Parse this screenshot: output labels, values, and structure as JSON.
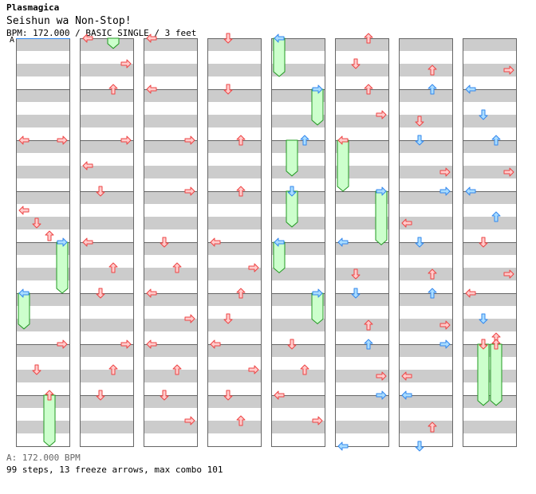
{
  "header": {
    "game": "Plasmagica",
    "song_title": "Seishun wa Non-Stop!",
    "chart_info": "BPM: 172.000 / BASIC SINGLE / 3 feet",
    "bpm_marker": "A"
  },
  "footer": {
    "bpm_legend": "A: 172.000 BPM",
    "summary": "99 steps, 13 freeze arrows, max combo 101"
  },
  "colors": {
    "stripe": "#cccccc",
    "border": "#666666",
    "red_fill": "#ffcccc",
    "red_stroke": "#ee4444",
    "blue_fill": "#aaddff",
    "blue_stroke": "#3388ee",
    "freeze_fill": "#ccffcc",
    "freeze_stroke": "#229922"
  },
  "chart_data": {
    "type": "step-chart",
    "lanes": [
      "left",
      "down",
      "up",
      "right"
    ],
    "measures_per_column": 8,
    "columns": 8,
    "freezes": [
      {
        "c": 0,
        "lane": 3,
        "from": 4.0,
        "to": 5.0
      },
      {
        "c": 0,
        "lane": 0,
        "from": 5.0,
        "to": 5.7
      },
      {
        "c": 0,
        "lane": 2,
        "from": 7.0,
        "to": 8.0
      },
      {
        "c": 1,
        "lane": 2,
        "from": 0.0,
        "to": 0.2
      },
      {
        "c": 4,
        "lane": 0,
        "from": 0.0,
        "to": 0.75
      },
      {
        "c": 4,
        "lane": 3,
        "from": 1.0,
        "to": 1.7
      },
      {
        "c": 4,
        "lane": 1,
        "from": 2.0,
        "to": 2.7
      },
      {
        "c": 4,
        "lane": 1,
        "from": 3.0,
        "to": 3.7
      },
      {
        "c": 4,
        "lane": 0,
        "from": 4.0,
        "to": 4.6
      },
      {
        "c": 4,
        "lane": 3,
        "from": 5.0,
        "to": 5.6
      },
      {
        "c": 5,
        "lane": 0,
        "from": 2.0,
        "to": 3.0
      },
      {
        "c": 5,
        "lane": 3,
        "from": 3.0,
        "to": 4.05
      },
      {
        "c": 7,
        "lane": 1,
        "from": 6.0,
        "to": 7.2
      },
      {
        "c": 7,
        "lane": 2,
        "from": 6.0,
        "to": 7.2
      }
    ],
    "arrows": [
      {
        "c": 0,
        "lane": 0,
        "b": 2.0,
        "col": "red"
      },
      {
        "c": 0,
        "lane": 3,
        "b": 2.0,
        "col": "red"
      },
      {
        "c": 0,
        "lane": 0,
        "b": 3.375,
        "col": "red"
      },
      {
        "c": 0,
        "lane": 1,
        "b": 3.625,
        "col": "red"
      },
      {
        "c": 0,
        "lane": 2,
        "b": 3.875,
        "col": "red"
      },
      {
        "c": 0,
        "lane": 3,
        "b": 4.0,
        "col": "blue"
      },
      {
        "c": 0,
        "lane": 0,
        "b": 5.0,
        "col": "blue"
      },
      {
        "c": 0,
        "lane": 3,
        "b": 6.0,
        "col": "red"
      },
      {
        "c": 0,
        "lane": 1,
        "b": 6.5,
        "col": "red"
      },
      {
        "c": 0,
        "lane": 2,
        "b": 7.0,
        "col": "red"
      },
      {
        "c": 1,
        "lane": 0,
        "b": 0.0,
        "col": "red"
      },
      {
        "c": 1,
        "lane": 3,
        "b": 0.5,
        "col": "red"
      },
      {
        "c": 1,
        "lane": 2,
        "b": 1.0,
        "col": "red"
      },
      {
        "c": 1,
        "lane": 3,
        "b": 2.0,
        "col": "red"
      },
      {
        "c": 1,
        "lane": 0,
        "b": 2.5,
        "col": "red"
      },
      {
        "c": 1,
        "lane": 1,
        "b": 3.0,
        "col": "red"
      },
      {
        "c": 1,
        "lane": 0,
        "b": 4.0,
        "col": "red"
      },
      {
        "c": 1,
        "lane": 2,
        "b": 4.5,
        "col": "red"
      },
      {
        "c": 1,
        "lane": 1,
        "b": 5.0,
        "col": "red"
      },
      {
        "c": 1,
        "lane": 3,
        "b": 6.0,
        "col": "red"
      },
      {
        "c": 1,
        "lane": 2,
        "b": 6.5,
        "col": "red"
      },
      {
        "c": 1,
        "lane": 1,
        "b": 7.0,
        "col": "red"
      },
      {
        "c": 2,
        "lane": 0,
        "b": 0.0,
        "col": "red"
      },
      {
        "c": 2,
        "lane": 0,
        "b": 1.0,
        "col": "red"
      },
      {
        "c": 2,
        "lane": 3,
        "b": 2.0,
        "col": "red"
      },
      {
        "c": 2,
        "lane": 3,
        "b": 3.0,
        "col": "red"
      },
      {
        "c": 2,
        "lane": 1,
        "b": 4.0,
        "col": "red"
      },
      {
        "c": 2,
        "lane": 2,
        "b": 4.5,
        "col": "red"
      },
      {
        "c": 2,
        "lane": 0,
        "b": 5.0,
        "col": "red"
      },
      {
        "c": 2,
        "lane": 3,
        "b": 5.5,
        "col": "red"
      },
      {
        "c": 2,
        "lane": 0,
        "b": 6.0,
        "col": "red"
      },
      {
        "c": 2,
        "lane": 2,
        "b": 6.5,
        "col": "red"
      },
      {
        "c": 2,
        "lane": 1,
        "b": 7.0,
        "col": "red"
      },
      {
        "c": 2,
        "lane": 3,
        "b": 7.5,
        "col": "red"
      },
      {
        "c": 3,
        "lane": 1,
        "b": 0.0,
        "col": "red"
      },
      {
        "c": 3,
        "lane": 1,
        "b": 1.0,
        "col": "red"
      },
      {
        "c": 3,
        "lane": 2,
        "b": 2.0,
        "col": "red"
      },
      {
        "c": 3,
        "lane": 2,
        "b": 3.0,
        "col": "red"
      },
      {
        "c": 3,
        "lane": 0,
        "b": 4.0,
        "col": "red"
      },
      {
        "c": 3,
        "lane": 3,
        "b": 4.5,
        "col": "red"
      },
      {
        "c": 3,
        "lane": 2,
        "b": 5.0,
        "col": "red"
      },
      {
        "c": 3,
        "lane": 1,
        "b": 5.5,
        "col": "red"
      },
      {
        "c": 3,
        "lane": 0,
        "b": 6.0,
        "col": "red"
      },
      {
        "c": 3,
        "lane": 3,
        "b": 6.5,
        "col": "red"
      },
      {
        "c": 3,
        "lane": 1,
        "b": 7.0,
        "col": "red"
      },
      {
        "c": 3,
        "lane": 2,
        "b": 7.5,
        "col": "red"
      },
      {
        "c": 4,
        "lane": 0,
        "b": 0.0,
        "col": "blue"
      },
      {
        "c": 4,
        "lane": 3,
        "b": 1.0,
        "col": "blue"
      },
      {
        "c": 4,
        "lane": 2,
        "b": 2.0,
        "col": "blue"
      },
      {
        "c": 4,
        "lane": 1,
        "b": 3.0,
        "col": "blue"
      },
      {
        "c": 4,
        "lane": 0,
        "b": 4.0,
        "col": "blue"
      },
      {
        "c": 4,
        "lane": 3,
        "b": 5.0,
        "col": "blue"
      },
      {
        "c": 4,
        "lane": 1,
        "b": 6.0,
        "col": "red"
      },
      {
        "c": 4,
        "lane": 2,
        "b": 6.5,
        "col": "red"
      },
      {
        "c": 4,
        "lane": 0,
        "b": 7.0,
        "col": "red"
      },
      {
        "c": 4,
        "lane": 3,
        "b": 7.5,
        "col": "red"
      },
      {
        "c": 5,
        "lane": 2,
        "b": 0.0,
        "col": "red"
      },
      {
        "c": 5,
        "lane": 1,
        "b": 0.5,
        "col": "red"
      },
      {
        "c": 5,
        "lane": 2,
        "b": 1.0,
        "col": "red"
      },
      {
        "c": 5,
        "lane": 3,
        "b": 1.5,
        "col": "red"
      },
      {
        "c": 5,
        "lane": 0,
        "b": 2.0,
        "col": "red"
      },
      {
        "c": 5,
        "lane": 3,
        "b": 3.0,
        "col": "blue"
      },
      {
        "c": 5,
        "lane": 0,
        "b": 4.0,
        "col": "blue"
      },
      {
        "c": 5,
        "lane": 1,
        "b": 4.625,
        "col": "red"
      },
      {
        "c": 5,
        "lane": 1,
        "b": 5.0,
        "col": "blue"
      },
      {
        "c": 5,
        "lane": 2,
        "b": 5.625,
        "col": "red"
      },
      {
        "c": 5,
        "lane": 2,
        "b": 6.0,
        "col": "blue"
      },
      {
        "c": 5,
        "lane": 3,
        "b": 6.625,
        "col": "red"
      },
      {
        "c": 5,
        "lane": 3,
        "b": 7.0,
        "col": "blue"
      },
      {
        "c": 5,
        "lane": 0,
        "b": 8.0,
        "col": "blue"
      },
      {
        "c": 6,
        "lane": 2,
        "b": 0.625,
        "col": "red"
      },
      {
        "c": 6,
        "lane": 2,
        "b": 1.0,
        "col": "blue"
      },
      {
        "c": 6,
        "lane": 1,
        "b": 1.625,
        "col": "red"
      },
      {
        "c": 6,
        "lane": 1,
        "b": 2.0,
        "col": "blue"
      },
      {
        "c": 6,
        "lane": 3,
        "b": 2.625,
        "col": "red"
      },
      {
        "c": 6,
        "lane": 3,
        "b": 3.0,
        "col": "blue"
      },
      {
        "c": 6,
        "lane": 0,
        "b": 3.625,
        "col": "red"
      },
      {
        "c": 6,
        "lane": 1,
        "b": 4.0,
        "col": "blue"
      },
      {
        "c": 6,
        "lane": 2,
        "b": 4.625,
        "col": "red"
      },
      {
        "c": 6,
        "lane": 2,
        "b": 5.0,
        "col": "blue"
      },
      {
        "c": 6,
        "lane": 3,
        "b": 5.625,
        "col": "red"
      },
      {
        "c": 6,
        "lane": 3,
        "b": 6.0,
        "col": "blue"
      },
      {
        "c": 6,
        "lane": 0,
        "b": 6.625,
        "col": "red"
      },
      {
        "c": 6,
        "lane": 0,
        "b": 7.0,
        "col": "blue"
      },
      {
        "c": 6,
        "lane": 2,
        "b": 7.625,
        "col": "red"
      },
      {
        "c": 6,
        "lane": 1,
        "b": 8.0,
        "col": "blue"
      },
      {
        "c": 7,
        "lane": 3,
        "b": 0.625,
        "col": "red"
      },
      {
        "c": 7,
        "lane": 0,
        "b": 1.0,
        "col": "blue"
      },
      {
        "c": 7,
        "lane": 1,
        "b": 1.5,
        "col": "blue"
      },
      {
        "c": 7,
        "lane": 2,
        "b": 2.0,
        "col": "blue"
      },
      {
        "c": 7,
        "lane": 3,
        "b": 2.625,
        "col": "red"
      },
      {
        "c": 7,
        "lane": 0,
        "b": 3.0,
        "col": "blue"
      },
      {
        "c": 7,
        "lane": 2,
        "b": 3.5,
        "col": "blue"
      },
      {
        "c": 7,
        "lane": 1,
        "b": 4.0,
        "col": "red"
      },
      {
        "c": 7,
        "lane": 3,
        "b": 4.625,
        "col": "red"
      },
      {
        "c": 7,
        "lane": 0,
        "b": 5.0,
        "col": "red"
      },
      {
        "c": 7,
        "lane": 1,
        "b": 5.5,
        "col": "blue"
      },
      {
        "c": 7,
        "lane": 2,
        "b": 5.875,
        "col": "red"
      },
      {
        "c": 7,
        "lane": 1,
        "b": 6.0,
        "col": "red"
      },
      {
        "c": 7,
        "lane": 2,
        "b": 6.0,
        "col": "red"
      }
    ]
  }
}
